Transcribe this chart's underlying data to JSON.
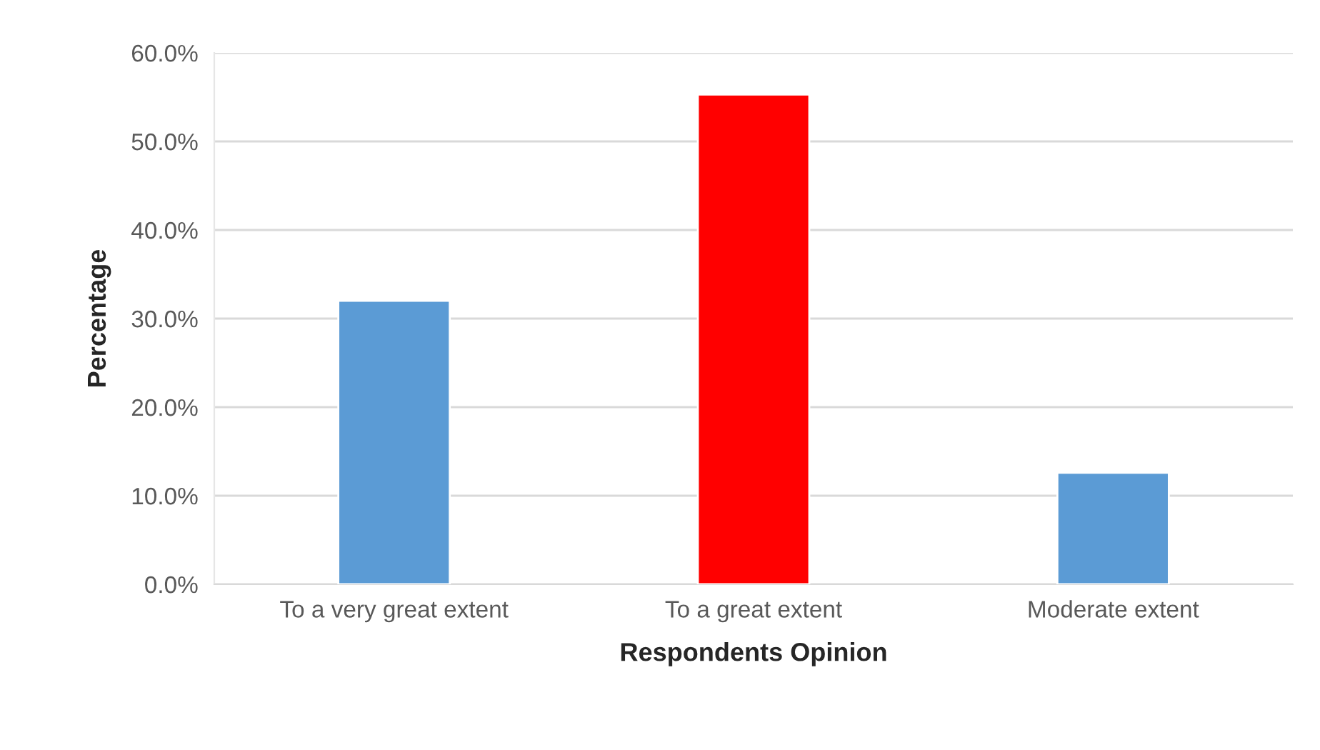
{
  "chart_data": {
    "type": "bar",
    "xlabel": "Respondents Opinion",
    "ylabel": "Percentage",
    "categories": [
      "To a very great extent",
      "To a great extent",
      "Moderate extent"
    ],
    "values": [
      32.0,
      55.3,
      12.6
    ],
    "colors": [
      "#5b9bd5",
      "#ff0000",
      "#5b9bd5"
    ],
    "ylim": [
      0,
      60
    ],
    "yticks": [
      {
        "value": 0,
        "label": "0.0%"
      },
      {
        "value": 10,
        "label": "10.0%"
      },
      {
        "value": 20,
        "label": "20.0%"
      },
      {
        "value": 30,
        "label": "30.0%"
      },
      {
        "value": 40,
        "label": "40.0%"
      },
      {
        "value": 50,
        "label": "50.0%"
      },
      {
        "value": 60,
        "label": "60.0%"
      }
    ],
    "grid": "y",
    "legend": false
  }
}
